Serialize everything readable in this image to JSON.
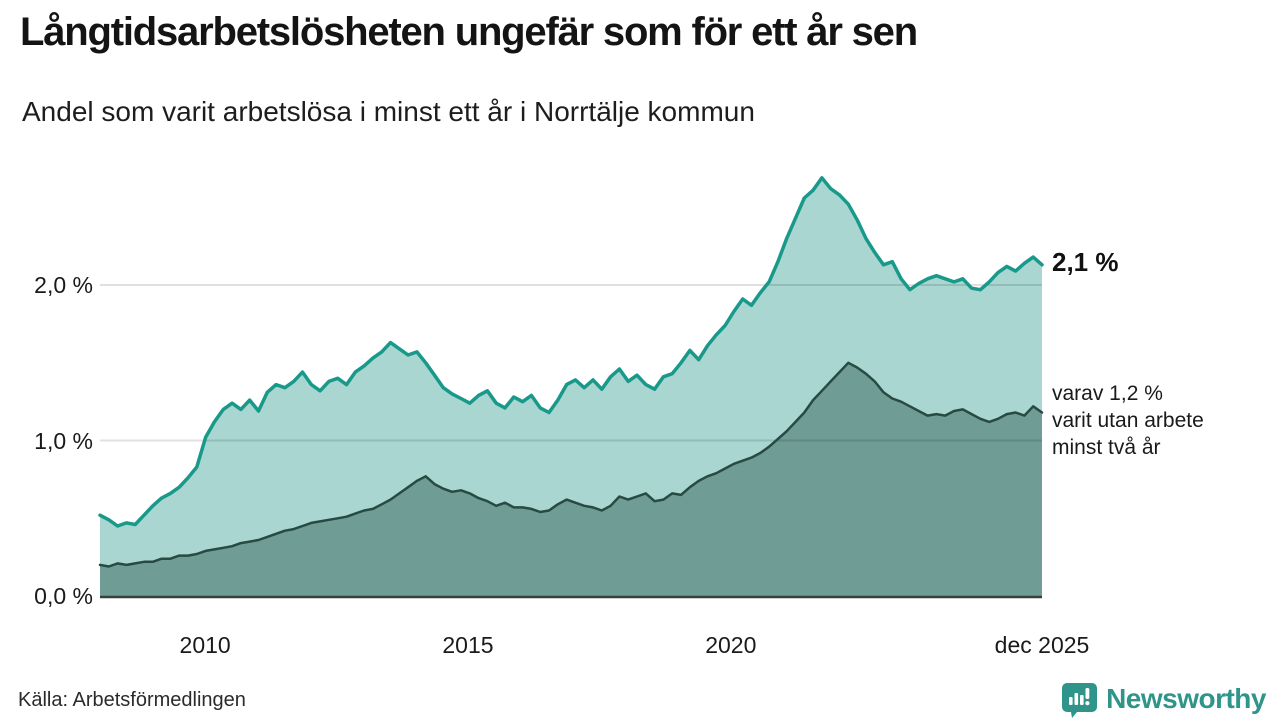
{
  "header": {
    "title": "Långtidsarbetslösheten ungefär som för ett år sen",
    "subtitle": "Andel som varit arbetslösa i minst ett år i Norrtälje kommun"
  },
  "footer": {
    "source": "Källa: Arbetsförmedlingen",
    "brand": "Newsworthy"
  },
  "colors": {
    "total_line": "#19998a",
    "total_fill": "#a9d6d0",
    "two_year_line": "#274b43",
    "two_year_fill": "#6f9d95",
    "gridline_overlay": "rgba(0,0,0,0.12)",
    "baseline": "#35413d",
    "brand_teal": "#2f9489"
  },
  "chart_data": {
    "type": "area",
    "title": "Långtidsarbetslösheten ungefär som för ett år sen",
    "subtitle": "Andel som varit arbetslösa i minst ett år i Norrtälje kommun",
    "xlabel": "",
    "ylabel": "",
    "x_start": 2008.0,
    "x_end": 2025.92,
    "ylim": [
      0,
      2.74
    ],
    "grid": "horizontal",
    "x_ticks": [
      {
        "value": 2010,
        "label": "2010"
      },
      {
        "value": 2015,
        "label": "2015"
      },
      {
        "value": 2020,
        "label": "2020"
      },
      {
        "value": 2025.92,
        "label": "dec 2025"
      }
    ],
    "y_ticks": [
      {
        "value": 0,
        "label": "0,0 %"
      },
      {
        "value": 1,
        "label": "1,0 %"
      },
      {
        "value": 2,
        "label": "2,0 %"
      }
    ],
    "series": [
      {
        "name": "Andel arbetslösa minst ett år",
        "end_value": "2,1 %",
        "values": [
          0.52,
          0.49,
          0.45,
          0.47,
          0.46,
          0.52,
          0.58,
          0.63,
          0.66,
          0.7,
          0.76,
          0.83,
          1.02,
          1.12,
          1.2,
          1.24,
          1.2,
          1.26,
          1.19,
          1.31,
          1.36,
          1.34,
          1.38,
          1.44,
          1.36,
          1.32,
          1.38,
          1.4,
          1.36,
          1.44,
          1.48,
          1.53,
          1.57,
          1.63,
          1.59,
          1.55,
          1.57,
          1.5,
          1.42,
          1.34,
          1.3,
          1.27,
          1.24,
          1.29,
          1.32,
          1.24,
          1.21,
          1.28,
          1.25,
          1.29,
          1.21,
          1.18,
          1.26,
          1.36,
          1.39,
          1.34,
          1.39,
          1.33,
          1.41,
          1.46,
          1.38,
          1.42,
          1.36,
          1.33,
          1.41,
          1.43,
          1.5,
          1.58,
          1.52,
          1.61,
          1.68,
          1.74,
          1.83,
          1.91,
          1.87,
          1.95,
          2.02,
          2.15,
          2.3,
          2.43,
          2.56,
          2.61,
          2.69,
          2.62,
          2.58,
          2.52,
          2.42,
          2.3,
          2.21,
          2.13,
          2.15,
          2.04,
          1.97,
          2.01,
          2.04,
          2.06,
          2.04,
          2.02,
          2.04,
          1.98,
          1.97,
          2.02,
          2.08,
          2.12,
          2.09,
          2.14,
          2.18,
          2.13
        ]
      },
      {
        "name": "varav utan arbete minst två år",
        "end_value": "1,2 %",
        "values": [
          0.2,
          0.19,
          0.21,
          0.2,
          0.21,
          0.22,
          0.22,
          0.24,
          0.24,
          0.26,
          0.26,
          0.27,
          0.29,
          0.3,
          0.31,
          0.32,
          0.34,
          0.35,
          0.36,
          0.38,
          0.4,
          0.42,
          0.43,
          0.45,
          0.47,
          0.48,
          0.49,
          0.5,
          0.51,
          0.53,
          0.55,
          0.56,
          0.59,
          0.62,
          0.66,
          0.7,
          0.74,
          0.77,
          0.72,
          0.69,
          0.67,
          0.68,
          0.66,
          0.63,
          0.61,
          0.58,
          0.6,
          0.57,
          0.57,
          0.56,
          0.54,
          0.55,
          0.59,
          0.62,
          0.6,
          0.58,
          0.57,
          0.55,
          0.58,
          0.64,
          0.62,
          0.64,
          0.66,
          0.61,
          0.62,
          0.66,
          0.65,
          0.7,
          0.74,
          0.77,
          0.79,
          0.82,
          0.85,
          0.87,
          0.89,
          0.92,
          0.96,
          1.01,
          1.06,
          1.12,
          1.18,
          1.26,
          1.32,
          1.38,
          1.44,
          1.5,
          1.47,
          1.43,
          1.38,
          1.31,
          1.27,
          1.25,
          1.22,
          1.19,
          1.16,
          1.17,
          1.16,
          1.19,
          1.2,
          1.17,
          1.14,
          1.12,
          1.14,
          1.17,
          1.18,
          1.16,
          1.22,
          1.18
        ]
      }
    ],
    "annotations": {
      "end_value_label": "2,1 %",
      "secondary_label_lines": [
        "varav 1,2 %",
        "varit utan arbete",
        "minst två år"
      ]
    }
  }
}
